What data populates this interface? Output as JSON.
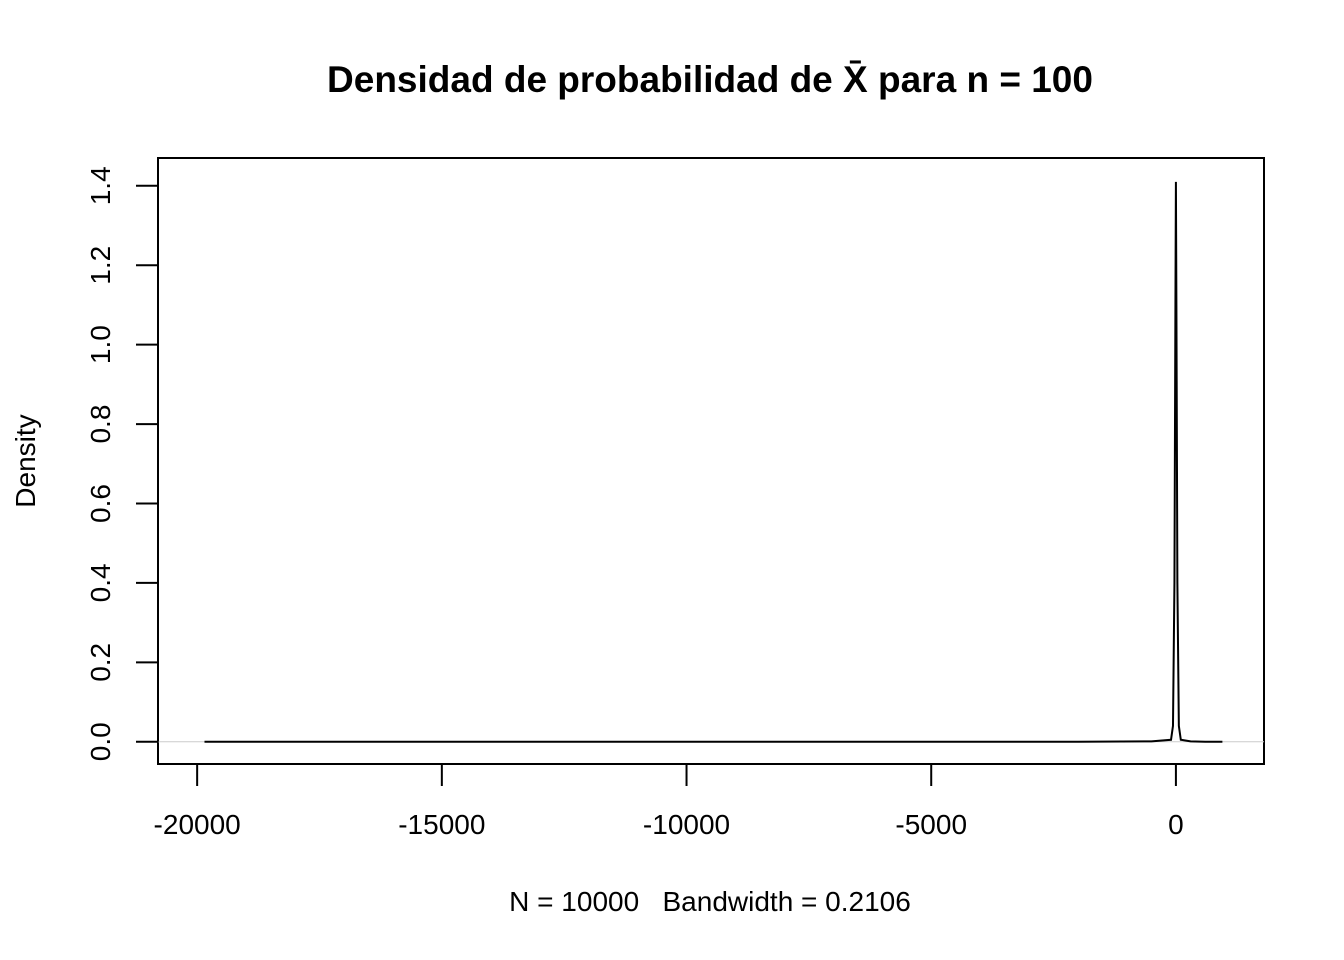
{
  "chart_data": {
    "type": "line",
    "title": "Densidad de probabilidad de X̄ para n = 100",
    "xlabel": "N = 10000   Bandwidth = 0.2106",
    "ylabel": "Density",
    "xlim": [
      -20800,
      1800
    ],
    "ylim": [
      -0.056,
      1.47
    ],
    "x_ticks": [
      -20000,
      -15000,
      -10000,
      -5000,
      0
    ],
    "x_tick_labels": [
      "-20000",
      "-15000",
      "-10000",
      "-5000",
      "0"
    ],
    "y_ticks": [
      0.0,
      0.2,
      0.4,
      0.6,
      0.8,
      1.0,
      1.2,
      1.4
    ],
    "y_tick_labels": [
      "0.0",
      "0.2",
      "0.4",
      "0.6",
      "0.8",
      "1.0",
      "1.2",
      "1.4"
    ],
    "baseline_y": 0,
    "series": [
      {
        "x": [
          -19850,
          -15000,
          -10000,
          -5000,
          -2000,
          -500,
          -100,
          -60,
          -30,
          -10,
          0,
          10,
          30,
          60,
          100,
          300,
          600,
          950
        ],
        "values": [
          0,
          0,
          0,
          0,
          0,
          0.001,
          0.005,
          0.04,
          0.4,
          1.1,
          1.41,
          1.1,
          0.4,
          0.04,
          0.005,
          0.001,
          0,
          0
        ]
      }
    ]
  }
}
